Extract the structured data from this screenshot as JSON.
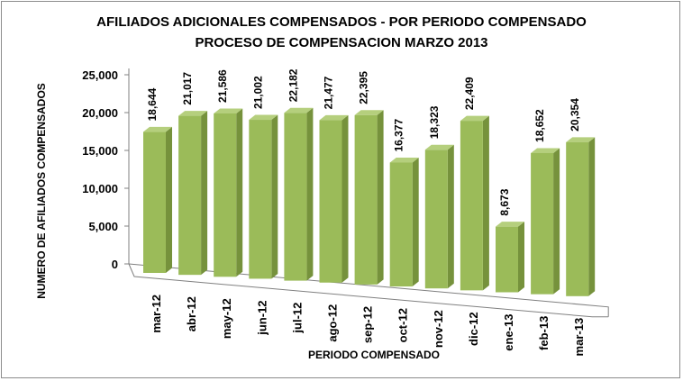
{
  "chart_data": {
    "type": "bar",
    "title": "AFILIADOS ADICIONALES COMPENSADOS - POR PERIODO COMPENSADO",
    "subtitle": "PROCESO DE COMPENSACION  MARZO 2013",
    "xlabel": "PERIODO COMPENSADO",
    "ylabel": "NUMERO DE AFILIADOS COMPENSADOS",
    "categories": [
      "mar-12",
      "abr-12",
      "may-12",
      "jun-12",
      "jul-12",
      "ago-12",
      "sep-12",
      "oct-12",
      "nov-12",
      "dic-12",
      "ene-13",
      "feb-13",
      "mar-13"
    ],
    "values": [
      18644,
      21017,
      21586,
      21002,
      22182,
      21477,
      22395,
      16377,
      18323,
      22409,
      8673,
      18652,
      20354
    ],
    "value_labels": [
      "18,644",
      "21,017",
      "21,586",
      "21,002",
      "22,182",
      "21,477",
      "22,395",
      "16,377",
      "18,323",
      "22,409",
      "8,673",
      "18,652",
      "20,354"
    ],
    "ylim": [
      0,
      25000
    ],
    "yticks": [
      0,
      5000,
      10000,
      15000,
      20000,
      25000
    ],
    "ytick_labels": [
      "0",
      "5,000",
      "10,000",
      "15,000",
      "20,000",
      "25,000"
    ],
    "grid": false,
    "legend": "none",
    "style": "3d-bar",
    "colors": {
      "bar_front": "#9bbb59",
      "bar_side": "#76923c",
      "bar_top": "#b5cf7d",
      "axis": "#808080"
    }
  }
}
